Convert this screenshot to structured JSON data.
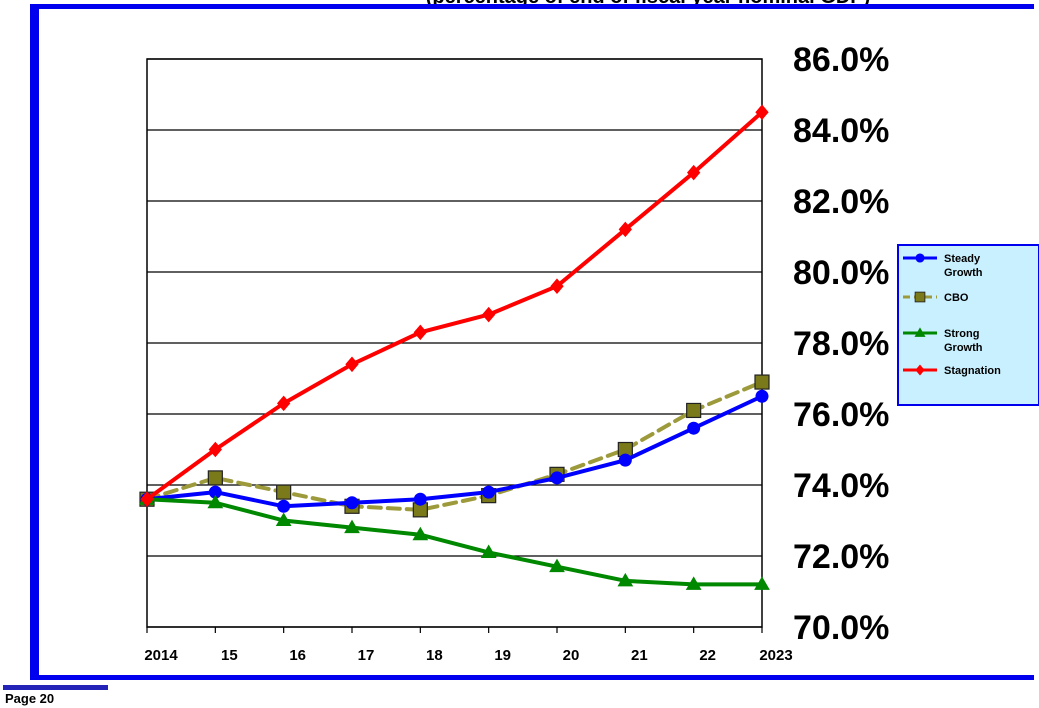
{
  "header": {
    "title_partial": "(percentage of end of fiscal year nominal GDP)"
  },
  "footer": {
    "page_label": "Page 20"
  },
  "chart_data": {
    "type": "line",
    "x": [
      "2014",
      "15",
      "16",
      "17",
      "18",
      "19",
      "20",
      "21",
      "22",
      "2023"
    ],
    "ylim": [
      70,
      86
    ],
    "yticks": [
      "70.0%",
      "72.0%",
      "74.0%",
      "76.0%",
      "78.0%",
      "80.0%",
      "82.0%",
      "84.0%",
      "86.0%"
    ],
    "ytick_values": [
      70,
      72,
      74,
      76,
      78,
      80,
      82,
      84,
      86
    ],
    "y_axis_position": "right",
    "grid": "horizontal",
    "legend_position": "right",
    "series": [
      {
        "name": "Steady Growth",
        "legend_lines": [
          "Steady",
          "Growth"
        ],
        "color": "#0000ff",
        "marker": "circle",
        "dash": "solid",
        "values": [
          73.6,
          73.8,
          73.4,
          73.5,
          73.6,
          73.8,
          74.2,
          74.7,
          75.6,
          76.5
        ]
      },
      {
        "name": "CBO",
        "legend_lines": [
          "CBO"
        ],
        "color": "#9c9a3a",
        "marker_fill": "#7a7a1a",
        "marker": "square",
        "dash": "dashed",
        "values": [
          73.6,
          74.2,
          73.8,
          73.4,
          73.3,
          73.7,
          74.3,
          75.0,
          76.1,
          76.9
        ]
      },
      {
        "name": "Strong Growth",
        "legend_lines": [
          "Strong",
          "Growth"
        ],
        "color": "#008800",
        "marker": "triangle",
        "dash": "solid",
        "values": [
          73.6,
          73.5,
          73.0,
          72.8,
          72.6,
          72.1,
          71.7,
          71.3,
          71.2,
          71.2
        ]
      },
      {
        "name": "Stagnation",
        "legend_lines": [
          "Stagnation"
        ],
        "color": "#ff0000",
        "marker": "diamond",
        "dash": "solid",
        "values": [
          73.6,
          75.0,
          76.3,
          77.4,
          78.3,
          78.8,
          79.6,
          81.2,
          82.8,
          84.5
        ]
      }
    ]
  }
}
